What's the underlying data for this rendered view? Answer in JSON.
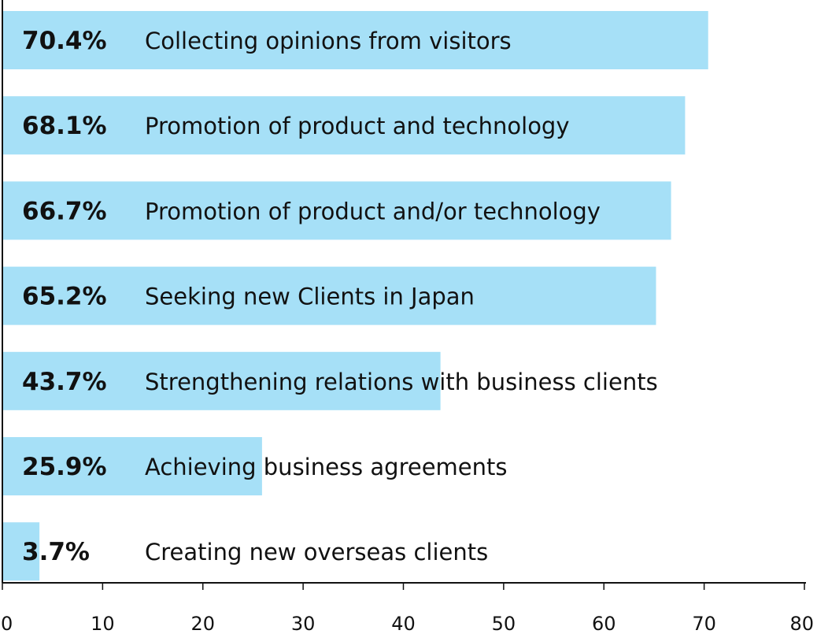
{
  "chart_data": {
    "type": "bar",
    "orientation": "horizontal",
    "categories": [
      "Collecting opinions from visitors",
      "Promotion of product and technology",
      "Promotion of product and/or technology",
      "Seeking new Clients in Japan",
      "Strengthening relations with business clients",
      "Achieving business agreements",
      "Creating new overseas clients"
    ],
    "values": [
      70.4,
      68.1,
      66.7,
      65.2,
      43.7,
      25.9,
      3.7
    ],
    "value_labels": [
      "70.4%",
      "68.1%",
      "66.7%",
      "65.2%",
      "43.7%",
      "25.9%",
      "3.7%"
    ],
    "xlim": [
      0,
      80
    ],
    "xticks": [
      0,
      10,
      20,
      30,
      40,
      50,
      60,
      70,
      80
    ],
    "xtick_labels": [
      "0",
      "10",
      "20",
      "30",
      "40",
      "50",
      "60",
      "70",
      "80"
    ],
    "bar_color": "#a6e0f7",
    "axis_color": "#111111",
    "grid": false,
    "legend": "none",
    "title": "",
    "xlabel": "",
    "ylabel": ""
  }
}
